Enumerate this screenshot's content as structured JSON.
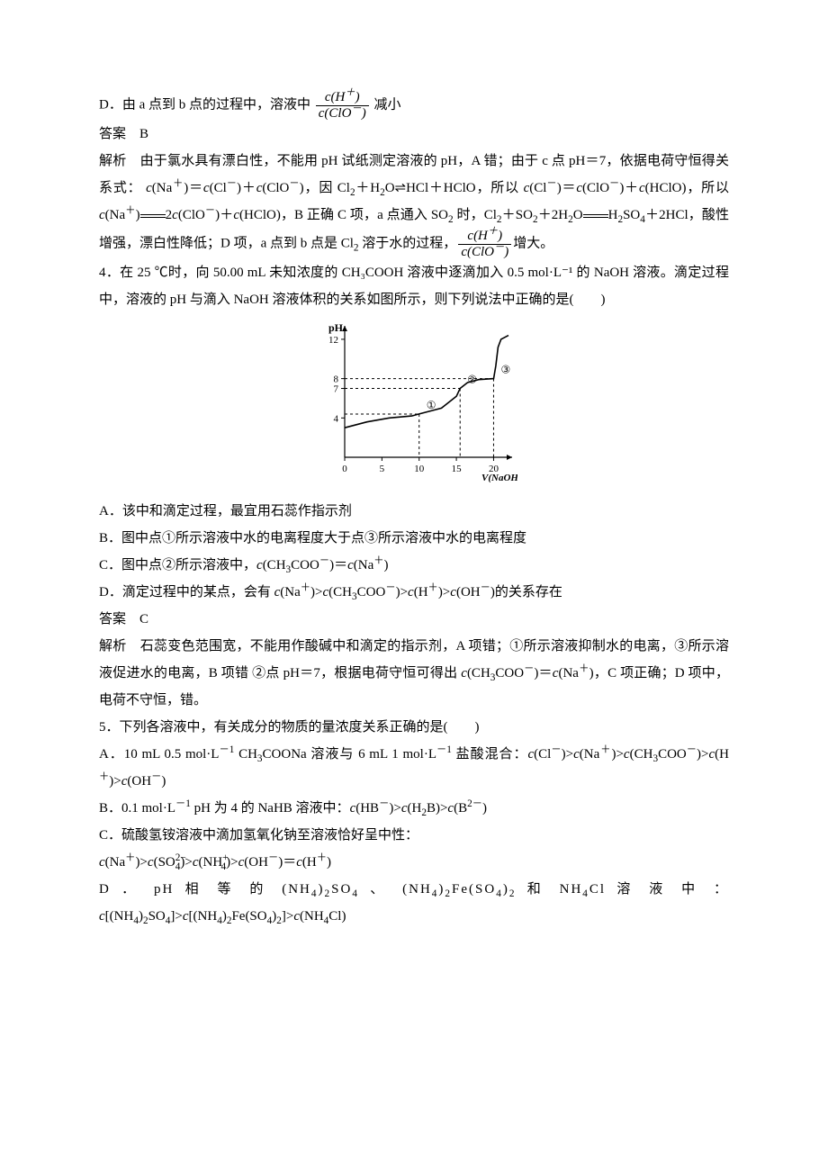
{
  "colors": {
    "text": "#000000",
    "background": "#ffffff",
    "axis": "#000000"
  },
  "q3": {
    "optD_pre": "D．由 a 点到 b 点的过程中，溶液中",
    "optD_post": "减小",
    "frac_num": "c(H⁺)",
    "frac_den": "c(ClO⁻)",
    "ans_label": "答案　B",
    "exp_pre": "解析　由于氯水具有漂白性，不能用 pH 试纸测定溶液的 pH，A 错；由于 c 点 pH＝7，依据电荷守恒得关系式：",
    "exp_eq1": "c(Na⁺)＝c(Cl⁻)＋c(ClO⁻)，因 Cl₂＋H₂O⇌HCl＋HClO，所以 c(Cl⁻)＝c(ClO⁻)＋c(HClO)，所以 c(Na⁺)＝2c(ClO⁻)＋c(HClO)，B 正确",
    "exp_c": " C 项，a 点通入 SO₂ 时，Cl₂＋SO₂＋2H₂O＝＝H₂SO₄＋2HCl，酸性增强，漂白性降低；D 项，a 点到 b 点是 Cl₂ 溶于水的过程，",
    "exp_tail": "增大。"
  },
  "q4": {
    "stem": "4．在 25 ℃时，向 50.00 mL 未知浓度的 CH₃COOH 溶液中逐滴加入 0.5 mol·L⁻¹ 的 NaOH 溶液。滴定过程中，溶液的 pH 与滴入 NaOH 溶液体积的关系如图所示，则下列说法中正确的是(　　)",
    "optA": "A．该中和滴定过程，最宜用石蕊作指示剂",
    "optB": "B．图中点①所示溶液中水的电离程度大于点③所示溶液中水的电离程度",
    "optC": "C．图中点②所示溶液中，c(CH₃COO⁻)＝c(Na⁺)",
    "optD": "D．滴定过程中的某点，会有 c(Na⁺)>c(CH₃COO⁻)>c(H⁺)>c(OH⁻)的关系存在",
    "ans_label": "答案　C",
    "exp": "解析　石蕊变色范围宽，不能用作酸碱中和滴定的指示剂，A 项错；①所示溶液抑制水的电离，③所示溶液促进水的电离，B 项错 ②点 pH＝7，根据电荷守恒可得出 c(CH₃COO⁻)＝c(Na⁺)，C 项正确；D 项中，电荷不守恒，错。",
    "chart": {
      "type": "line",
      "xlabel": "V(NaOH)/mL",
      "ylabel": "pH",
      "xlim": [
        0,
        22
      ],
      "ylim": [
        0,
        13
      ],
      "xticks": [
        0,
        5,
        10,
        15,
        20
      ],
      "yticks": [
        4,
        7,
        8,
        12
      ],
      "axis_color": "#000000",
      "background_color": "#ffffff",
      "curve_color": "#000000",
      "curve_width": 1.6,
      "point_labels": [
        "①",
        "②",
        "③"
      ],
      "points_x": [
        10,
        15.5,
        20
      ],
      "points_y": [
        4.4,
        7,
        8
      ],
      "curve": [
        [
          0,
          3.0
        ],
        [
          3,
          3.6
        ],
        [
          6,
          4.0
        ],
        [
          9,
          4.2
        ],
        [
          10,
          4.4
        ],
        [
          13,
          5.0
        ],
        [
          15,
          6.2
        ],
        [
          15.5,
          7.0
        ],
        [
          16.5,
          7.6
        ],
        [
          18,
          7.9
        ],
        [
          20,
          8.0
        ],
        [
          20.3,
          9.3
        ],
        [
          20.6,
          11.2
        ],
        [
          21,
          12.0
        ],
        [
          22,
          12.4
        ]
      ]
    }
  },
  "q5": {
    "stem": "5．下列各溶液中，有关成分的物质的量浓度关系正确的是(　　)",
    "optA": "A．10 mL 0.5 mol·L⁻¹ CH₃COONa 溶液与 6 mL 1 mol·L⁻¹ 盐酸混合：c(Cl⁻)>c(Na⁺)>c(CH₃COO⁻)>c(H⁺)>c(OH⁻)",
    "optB": "B．0.1 mol·L⁻¹ pH 为 4 的 NaHB 溶液中：c(HB⁻)>c(H₂B)>c(B²⁻)",
    "optC1": "C．硫酸氢铵溶液中滴加氢氧化钠至溶液恰好呈中性：",
    "optC2": "c(Na⁺)>c(SO₄²⁻)>c(NH₄⁺)>c(OH⁻)＝c(H⁺)",
    "optD": "D ． pH 相 等 的 (NH₄)₂SO₄ 、 (NH₄)₂Fe(SO₄)₂ 和 NH₄Cl 溶 液 中 ：c[(NH₄)₂SO₄]>c[(NH₄)₂Fe(SO₄)₂]>c(NH₄Cl)"
  }
}
